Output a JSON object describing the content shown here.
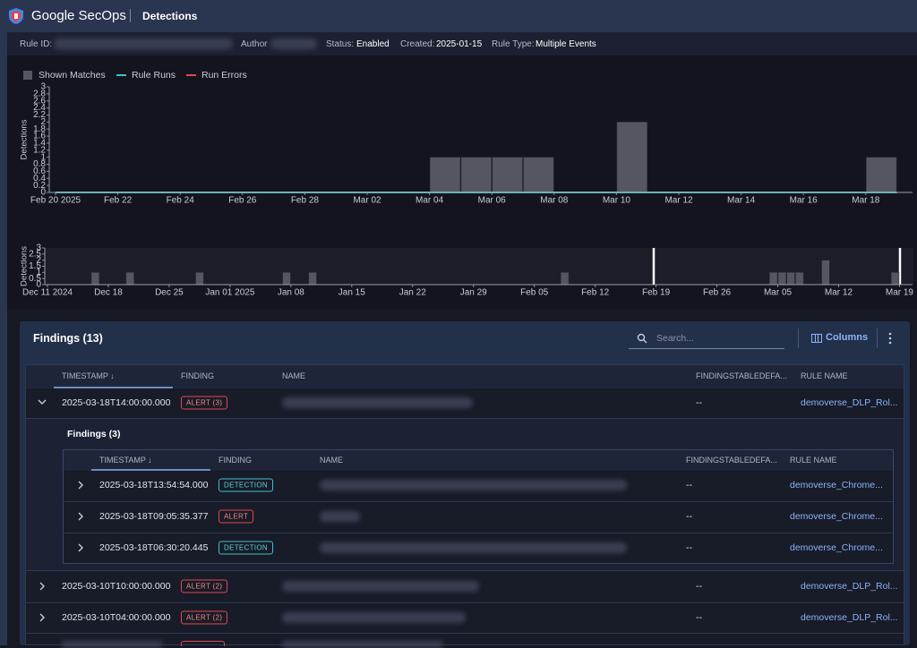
{
  "header": {
    "product": "Google SecOps",
    "page": "Detections"
  },
  "rule_info": {
    "rule_id_label": "Rule ID:",
    "author_label": "Author",
    "status_label": "Status:",
    "status": "Enabled",
    "created_label": "Created:",
    "created": "2025-01-15",
    "rule_type_label": "Rule Type:",
    "rule_type": "Multiple Events"
  },
  "chart_data": [
    {
      "type": "bar",
      "y_label": "Detections",
      "legend": "top-left",
      "xlim": [
        "2025-02-20",
        "2025-03-19T12:00:00Z"
      ],
      "xticks": [
        {
          "value": "2025-02-20",
          "label": "Feb 20 2025"
        },
        {
          "value": "2025-02-22",
          "label": "Feb 22"
        },
        {
          "value": "2025-02-24",
          "label": "Feb 24"
        },
        {
          "value": "2025-02-26",
          "label": "Feb 26"
        },
        {
          "value": "2025-02-28",
          "label": "Feb 28"
        },
        {
          "value": "2025-03-02",
          "label": "Mar 02"
        },
        {
          "value": "2025-03-04",
          "label": "Mar 04"
        },
        {
          "value": "2025-03-06",
          "label": "Mar 06"
        },
        {
          "value": "2025-03-08",
          "label": "Mar 08"
        },
        {
          "value": "2025-03-10",
          "label": "Mar 10"
        },
        {
          "value": "2025-03-12",
          "label": "Mar 12"
        },
        {
          "value": "2025-03-14",
          "label": "Mar 14"
        },
        {
          "value": "2025-03-16",
          "label": "Mar 16"
        },
        {
          "value": "2025-03-18",
          "label": "Mar 18"
        }
      ],
      "ylim": [
        0,
        3
      ],
      "yticks": [
        0,
        0.2,
        0.4,
        0.6,
        0.8,
        1,
        1.2,
        1.4,
        1.6,
        1.8,
        2,
        2.2,
        2.4,
        2.6,
        2.8,
        3
      ],
      "series": [
        {
          "name": "Shown Matches",
          "type": "bar",
          "color": "#55565f",
          "x": [
            "2025-03-04",
            "2025-03-05",
            "2025-03-06",
            "2025-03-07",
            "2025-03-10",
            "2025-03-18"
          ],
          "values": [
            1,
            1,
            1,
            1,
            2,
            1
          ]
        },
        {
          "name": "Rule Runs",
          "type": "line",
          "color": "#3fc1c9",
          "x": [
            "2025-02-20",
            "2025-03-19"
          ],
          "values": [
            0,
            0
          ]
        },
        {
          "name": "Run Errors",
          "type": "line",
          "color": "#e5484d",
          "x": [],
          "values": []
        }
      ]
    },
    {
      "type": "bar",
      "y_label": "Detections",
      "color": "#55565f",
      "xlim": [
        "2024-12-11",
        "2025-03-20T12:00:00Z"
      ],
      "xticks": [
        {
          "value": "2024-12-11",
          "label": "Dec 11 2024"
        },
        {
          "value": "2024-12-18",
          "label": "Dec 18"
        },
        {
          "value": "2024-12-25",
          "label": "Dec 25"
        },
        {
          "value": "2025-01-01",
          "label": "Jan 01 2025"
        },
        {
          "value": "2025-01-08",
          "label": "Jan 08"
        },
        {
          "value": "2025-01-15",
          "label": "Jan 15"
        },
        {
          "value": "2025-01-22",
          "label": "Jan 22"
        },
        {
          "value": "2025-01-29",
          "label": "Jan 29"
        },
        {
          "value": "2025-02-05",
          "label": "Feb 05"
        },
        {
          "value": "2025-02-12",
          "label": "Feb 12"
        },
        {
          "value": "2025-02-19",
          "label": "Feb 19"
        },
        {
          "value": "2025-02-26",
          "label": "Feb 26"
        },
        {
          "value": "2025-03-05",
          "label": "Mar 05"
        },
        {
          "value": "2025-03-12",
          "label": "Mar 12"
        },
        {
          "value": "2025-03-19",
          "label": "Mar 19"
        }
      ],
      "ylim": [
        0,
        3
      ],
      "yticks": [
        0,
        0.5,
        1,
        1.5,
        2,
        2.5,
        3
      ],
      "x": [
        "2024-12-16",
        "2024-12-20",
        "2024-12-28",
        "2025-01-07",
        "2025-01-10",
        "2025-02-08",
        "2025-03-04",
        "2025-03-05",
        "2025-03-06",
        "2025-03-07",
        "2025-03-10",
        "2025-03-18"
      ],
      "values": [
        1,
        1,
        1,
        1,
        1,
        1,
        1,
        1,
        1,
        1,
        2,
        1
      ]
    }
  ],
  "findings": {
    "title": "Findings (13)",
    "search_placeholder": "Search...",
    "columns_button": "Columns",
    "columns": [
      "TIMESTAMP ↓",
      "FINDING",
      "NAME",
      "FINDINGSTABLEDEFA...",
      "RULE NAME"
    ],
    "rows": [
      {
        "timestamp": "2025-03-18T14:00:00.000",
        "finding": "ALERT (3)",
        "field": "--",
        "rule_name": "demoverse_DLP_Rol...",
        "children": {
          "title": "Findings (3)",
          "columns": [
            "TIMESTAMP ↓",
            "FINDING",
            "NAME",
            "FINDINGSTABLEDEFA...",
            "RULE NAME"
          ],
          "rows": [
            {
              "timestamp": "2025-03-18T13:54:54.000",
              "finding": "DETECTION",
              "field": "--",
              "rule_name": "demoverse_Chrome..."
            },
            {
              "timestamp": "2025-03-18T09:05:35.377",
              "finding": "ALERT",
              "field": "--",
              "rule_name": "demoverse_Chrome..."
            },
            {
              "timestamp": "2025-03-18T06:30:20.445",
              "finding": "DETECTION",
              "field": "--",
              "rule_name": "demoverse_Chrome..."
            }
          ]
        }
      },
      {
        "timestamp": "2025-03-10T10:00:00.000",
        "finding": "ALERT (2)",
        "field": "--",
        "rule_name": "demoverse_DLP_Rol..."
      },
      {
        "timestamp": "2025-03-10T04:00:00.000",
        "finding": "ALERT (2)",
        "field": "--",
        "rule_name": "demoverse_DLP_Rol..."
      }
    ]
  }
}
